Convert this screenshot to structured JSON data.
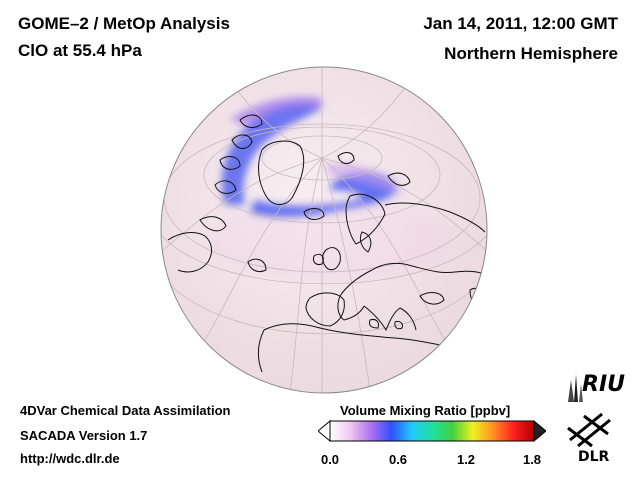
{
  "header": {
    "title": "GOME–2 / MetOp Analysis",
    "species": "ClO at 55.4 hPa",
    "date": "Jan 14, 2011, 12:00 GMT",
    "region": "Northern Hemisphere"
  },
  "footer": {
    "assimilation": "4DVar Chemical Data Assimilation",
    "version": "SACADA Version 1.7",
    "url": "http://wdc.dlr.de"
  },
  "colorbar": {
    "title": "Volume Mixing Ratio [ppbv]",
    "ticks": [
      "0.0",
      "0.6",
      "1.2",
      "1.8"
    ],
    "range": [
      0.0,
      1.8
    ],
    "colors": [
      "#ffffff",
      "#f0c8f0",
      "#b070f0",
      "#3050ff",
      "#20c8ff",
      "#20e0a0",
      "#40d040",
      "#f0f020",
      "#ff9020",
      "#ff2020",
      "#b00000"
    ]
  },
  "logos": {
    "riu": "RIU",
    "dlr": "DLR"
  },
  "map": {
    "projection": "orthographic",
    "center": "North Atlantic / Europe",
    "ocean_color": "#f6eaee",
    "clo_color": "#3b55f0"
  }
}
